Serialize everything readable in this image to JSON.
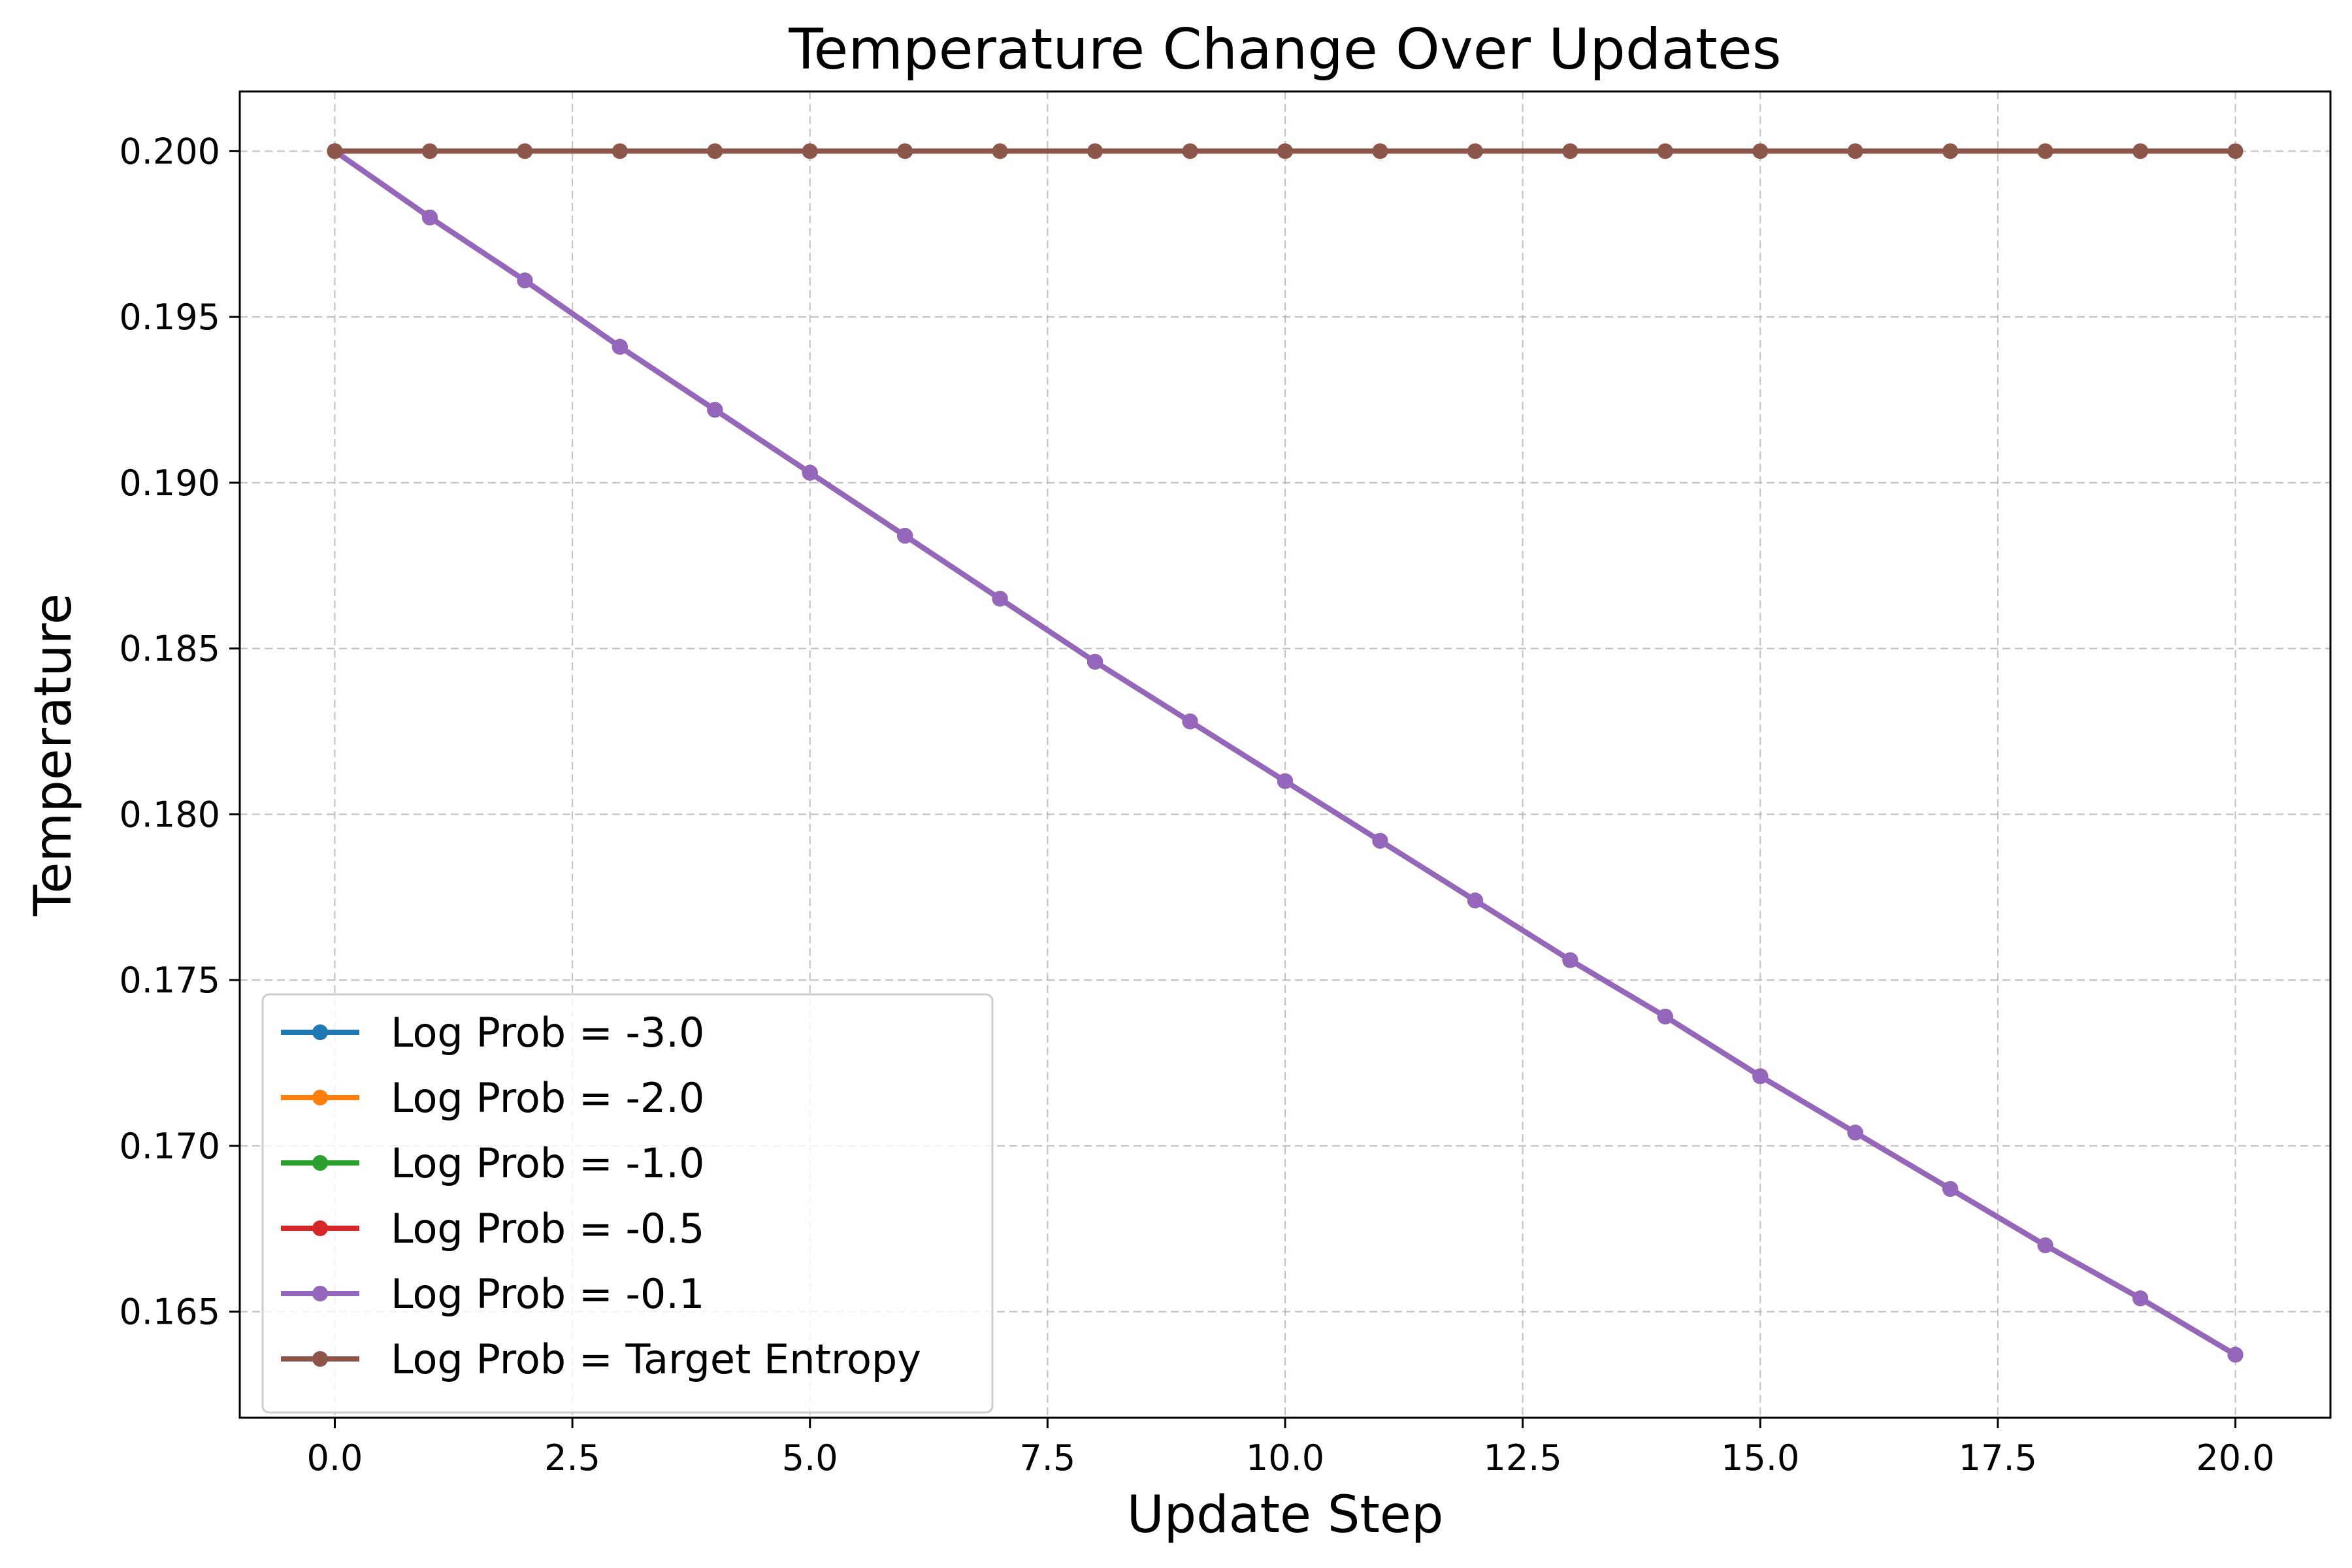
{
  "chart_data": {
    "type": "line",
    "title": "Temperature Change Over Updates",
    "xlabel": "Update Step",
    "ylabel": "Temperature",
    "xlim": [
      -1.0,
      21.0
    ],
    "ylim": [
      0.1618,
      0.2018
    ],
    "x_ticks": [
      0.0,
      2.5,
      5.0,
      7.5,
      10.0,
      12.5,
      15.0,
      17.5,
      20.0
    ],
    "x_tick_labels": [
      "0.0",
      "2.5",
      "5.0",
      "7.5",
      "10.0",
      "12.5",
      "15.0",
      "17.5",
      "20.0"
    ],
    "y_ticks": [
      0.165,
      0.17,
      0.175,
      0.18,
      0.185,
      0.19,
      0.195,
      0.2
    ],
    "y_tick_labels": [
      "0.165",
      "0.170",
      "0.175",
      "0.180",
      "0.185",
      "0.190",
      "0.195",
      "0.200"
    ],
    "grid": true,
    "legend_position": "lower-left",
    "x": [
      0,
      1,
      2,
      3,
      4,
      5,
      6,
      7,
      8,
      9,
      10,
      11,
      12,
      13,
      14,
      15,
      16,
      17,
      18,
      19,
      20
    ],
    "series": [
      {
        "name": "Log Prob = -3.0",
        "color": "#1f77b4",
        "values": [
          0.2,
          0.198,
          0.1961,
          0.1941,
          0.1922,
          0.1903,
          0.1884,
          0.1865,
          0.1846,
          0.1828,
          0.181,
          0.1792,
          0.1774,
          0.1756,
          0.1739,
          0.1721,
          0.1704,
          0.1687,
          0.167,
          0.1654,
          0.1637
        ]
      },
      {
        "name": "Log Prob = -2.0",
        "color": "#ff7f0e",
        "values": [
          0.2,
          0.198,
          0.1961,
          0.1941,
          0.1922,
          0.1903,
          0.1884,
          0.1865,
          0.1846,
          0.1828,
          0.181,
          0.1792,
          0.1774,
          0.1756,
          0.1739,
          0.1721,
          0.1704,
          0.1687,
          0.167,
          0.1654,
          0.1637
        ]
      },
      {
        "name": "Log Prob = -1.0",
        "color": "#2ca02c",
        "values": [
          0.2,
          0.198,
          0.1961,
          0.1941,
          0.1922,
          0.1903,
          0.1884,
          0.1865,
          0.1846,
          0.1828,
          0.181,
          0.1792,
          0.1774,
          0.1756,
          0.1739,
          0.1721,
          0.1704,
          0.1687,
          0.167,
          0.1654,
          0.1637
        ]
      },
      {
        "name": "Log Prob = -0.5",
        "color": "#d62728",
        "values": [
          0.2,
          0.198,
          0.1961,
          0.1941,
          0.1922,
          0.1903,
          0.1884,
          0.1865,
          0.1846,
          0.1828,
          0.181,
          0.1792,
          0.1774,
          0.1756,
          0.1739,
          0.1721,
          0.1704,
          0.1687,
          0.167,
          0.1654,
          0.1637
        ]
      },
      {
        "name": "Log Prob = -0.1",
        "color": "#9467bd",
        "values": [
          0.2,
          0.198,
          0.1961,
          0.1941,
          0.1922,
          0.1903,
          0.1884,
          0.1865,
          0.1846,
          0.1828,
          0.181,
          0.1792,
          0.1774,
          0.1756,
          0.1739,
          0.1721,
          0.1704,
          0.1687,
          0.167,
          0.1654,
          0.1637
        ]
      },
      {
        "name": "Log Prob = Target Entropy",
        "color": "#8c564b",
        "values": [
          0.2,
          0.2,
          0.2,
          0.2,
          0.2,
          0.2,
          0.2,
          0.2,
          0.2,
          0.2,
          0.2,
          0.2,
          0.2,
          0.2,
          0.2,
          0.2,
          0.2,
          0.2,
          0.2,
          0.2,
          0.2
        ]
      }
    ]
  }
}
